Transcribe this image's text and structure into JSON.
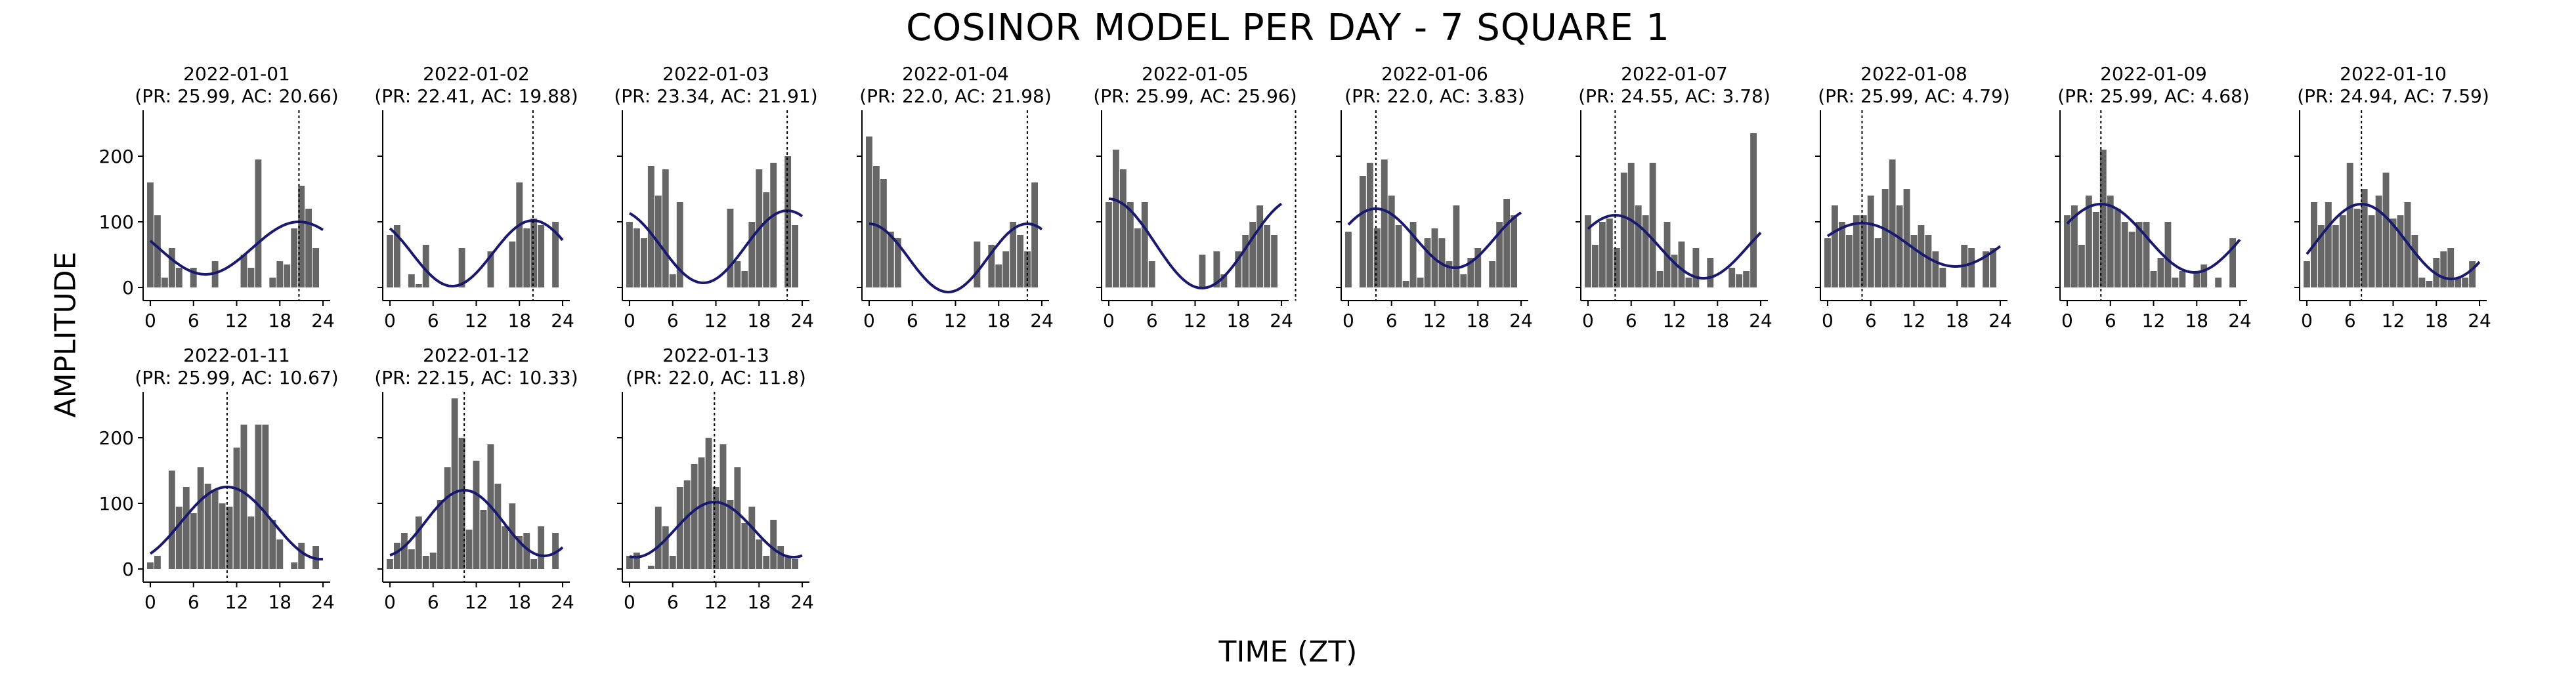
{
  "figure": {
    "title": "COSINOR MODEL PER DAY - 7 SQUARE 1",
    "ylabel": "AMPLITUDE",
    "xlabel": "TIME (ZT)",
    "bar_color": "#666666",
    "fit_color": "#191970"
  },
  "chart_data": [
    {
      "type": "bar",
      "title": "2022-01-01",
      "subtitle": "(PR: 25.99, AC: 20.66)",
      "x": [
        0,
        1,
        2,
        3,
        4,
        5,
        6,
        7,
        8,
        9,
        10,
        11,
        12,
        13,
        14,
        15,
        16,
        17,
        18,
        19,
        20,
        21,
        22,
        23
      ],
      "values": [
        160,
        110,
        15,
        60,
        30,
        0,
        30,
        0,
        0,
        40,
        0,
        0,
        0,
        50,
        30,
        195,
        0,
        15,
        40,
        35,
        90,
        155,
        120,
        60
      ],
      "xlim": [
        -1,
        25
      ],
      "ylim": [
        -20,
        270
      ],
      "xticks": [
        0,
        6,
        12,
        18,
        24
      ],
      "yticks": [
        0,
        100,
        200
      ],
      "fit": {
        "mesor": 60,
        "amplitude": 40,
        "acrophase": 20.66,
        "period": 25.99
      }
    },
    {
      "type": "bar",
      "title": "2022-01-02",
      "subtitle": "(PR: 22.41, AC: 19.88)",
      "x": [
        0,
        1,
        2,
        3,
        4,
        5,
        6,
        7,
        8,
        9,
        10,
        11,
        12,
        13,
        14,
        15,
        16,
        17,
        18,
        19,
        20,
        21,
        22,
        23
      ],
      "values": [
        80,
        95,
        0,
        20,
        5,
        65,
        0,
        0,
        0,
        0,
        60,
        0,
        0,
        0,
        55,
        0,
        0,
        70,
        160,
        90,
        105,
        95,
        0,
        100
      ],
      "xlim": [
        -1,
        25
      ],
      "ylim": [
        -20,
        270
      ],
      "xticks": [
        0,
        6,
        12,
        18,
        24
      ],
      "yticks": [
        0,
        100,
        200
      ],
      "fit": {
        "mesor": 52,
        "amplitude": 50,
        "acrophase": 19.88,
        "period": 22.41
      }
    },
    {
      "type": "bar",
      "title": "2022-01-03",
      "subtitle": "(PR: 23.34, AC: 21.91)",
      "x": [
        0,
        1,
        2,
        3,
        4,
        5,
        6,
        7,
        8,
        9,
        10,
        11,
        12,
        13,
        14,
        15,
        16,
        17,
        18,
        19,
        20,
        21,
        22,
        23
      ],
      "values": [
        100,
        90,
        75,
        185,
        140,
        180,
        20,
        130,
        0,
        0,
        0,
        0,
        0,
        0,
        120,
        40,
        25,
        100,
        180,
        145,
        190,
        0,
        200,
        95
      ],
      "xlim": [
        -1,
        25
      ],
      "ylim": [
        -20,
        270
      ],
      "xticks": [
        0,
        6,
        12,
        18,
        24
      ],
      "yticks": [
        0,
        100,
        200
      ],
      "fit": {
        "mesor": 62,
        "amplitude": 55,
        "acrophase": 21.91,
        "period": 23.34
      }
    },
    {
      "type": "bar",
      "title": "2022-01-04",
      "subtitle": "(PR: 22.0, AC: 21.98)",
      "x": [
        0,
        1,
        2,
        3,
        4,
        5,
        6,
        7,
        8,
        9,
        10,
        11,
        12,
        13,
        14,
        15,
        16,
        17,
        18,
        19,
        20,
        21,
        22,
        23
      ],
      "values": [
        230,
        185,
        165,
        85,
        75,
        0,
        0,
        0,
        0,
        0,
        0,
        0,
        0,
        0,
        0,
        70,
        0,
        65,
        35,
        55,
        100,
        80,
        55,
        160
      ],
      "xlim": [
        -1,
        25
      ],
      "ylim": [
        -20,
        270
      ],
      "xticks": [
        0,
        6,
        12,
        18,
        24
      ],
      "yticks": [
        0,
        100,
        200
      ],
      "fit": {
        "mesor": 45,
        "amplitude": 52,
        "acrophase": 21.98,
        "period": 22.0
      }
    },
    {
      "type": "bar",
      "title": "2022-01-05",
      "subtitle": "(PR: 25.99, AC: 25.96)",
      "x": [
        0,
        1,
        2,
        3,
        4,
        5,
        6,
        7,
        8,
        9,
        10,
        11,
        12,
        13,
        14,
        15,
        16,
        17,
        18,
        19,
        20,
        21,
        22,
        23
      ],
      "values": [
        130,
        210,
        180,
        130,
        90,
        130,
        40,
        0,
        0,
        0,
        0,
        0,
        0,
        50,
        0,
        55,
        20,
        0,
        55,
        80,
        100,
        125,
        95,
        80
      ],
      "xlim": [
        -1,
        25
      ],
      "ylim": [
        -20,
        270
      ],
      "xticks": [
        0,
        6,
        12,
        18,
        24
      ],
      "yticks": [
        0,
        100,
        200
      ],
      "fit": {
        "mesor": 67,
        "amplitude": 68,
        "acrophase": 25.96,
        "period": 25.99
      }
    },
    {
      "type": "bar",
      "title": "2022-01-06",
      "subtitle": "(PR: 22.0, AC: 3.83)",
      "x": [
        0,
        1,
        2,
        3,
        4,
        5,
        6,
        7,
        8,
        9,
        10,
        11,
        12,
        13,
        14,
        15,
        16,
        17,
        18,
        19,
        20,
        21,
        22,
        23
      ],
      "values": [
        85,
        0,
        170,
        190,
        90,
        195,
        140,
        95,
        10,
        100,
        15,
        75,
        90,
        75,
        40,
        125,
        20,
        45,
        60,
        0,
        40,
        100,
        135,
        110
      ],
      "xlim": [
        -1,
        25
      ],
      "ylim": [
        -20,
        270
      ],
      "xticks": [
        0,
        6,
        12,
        18,
        24
      ],
      "yticks": [
        0,
        100,
        200
      ],
      "fit": {
        "mesor": 75,
        "amplitude": 45,
        "acrophase": 3.83,
        "period": 22.0
      }
    },
    {
      "type": "bar",
      "title": "2022-01-07",
      "subtitle": "(PR: 24.55, AC: 3.78)",
      "x": [
        0,
        1,
        2,
        3,
        4,
        5,
        6,
        7,
        8,
        9,
        10,
        11,
        12,
        13,
        14,
        15,
        16,
        17,
        18,
        19,
        20,
        21,
        22,
        23
      ],
      "values": [
        110,
        65,
        100,
        105,
        60,
        175,
        190,
        125,
        110,
        190,
        25,
        100,
        50,
        70,
        15,
        60,
        0,
        45,
        0,
        0,
        30,
        20,
        25,
        235
      ],
      "xlim": [
        -1,
        25
      ],
      "ylim": [
        -20,
        270
      ],
      "xticks": [
        0,
        6,
        12,
        18,
        24
      ],
      "yticks": [
        0,
        100,
        200
      ],
      "fit": {
        "mesor": 62,
        "amplitude": 48,
        "acrophase": 3.78,
        "period": 24.55
      }
    },
    {
      "type": "bar",
      "title": "2022-01-08",
      "subtitle": "(PR: 25.99, AC: 4.79)",
      "x": [
        0,
        1,
        2,
        3,
        4,
        5,
        6,
        7,
        8,
        9,
        10,
        11,
        12,
        13,
        14,
        15,
        16,
        17,
        18,
        19,
        20,
        21,
        22,
        23
      ],
      "values": [
        75,
        125,
        100,
        80,
        110,
        110,
        140,
        75,
        150,
        195,
        125,
        150,
        80,
        95,
        80,
        55,
        30,
        0,
        0,
        65,
        60,
        0,
        55,
        60
      ],
      "xlim": [
        -1,
        25
      ],
      "ylim": [
        -20,
        270
      ],
      "xticks": [
        0,
        6,
        12,
        18,
        24
      ],
      "yticks": [
        0,
        100,
        200
      ],
      "fit": {
        "mesor": 65,
        "amplitude": 33,
        "acrophase": 4.79,
        "period": 25.99
      }
    },
    {
      "type": "bar",
      "title": "2022-01-09",
      "subtitle": "(PR: 25.99, AC: 4.68)",
      "x": [
        0,
        1,
        2,
        3,
        4,
        5,
        6,
        7,
        8,
        9,
        10,
        11,
        12,
        13,
        14,
        15,
        16,
        17,
        18,
        19,
        20,
        21,
        22,
        23
      ],
      "values": [
        110,
        125,
        65,
        140,
        115,
        210,
        140,
        120,
        100,
        85,
        100,
        100,
        25,
        45,
        100,
        15,
        25,
        0,
        25,
        35,
        0,
        15,
        0,
        75
      ],
      "xlim": [
        -1,
        25
      ],
      "ylim": [
        -20,
        270
      ],
      "xticks": [
        0,
        6,
        12,
        18,
        24
      ],
      "yticks": [
        0,
        100,
        200
      ],
      "fit": {
        "mesor": 75,
        "amplitude": 52,
        "acrophase": 4.68,
        "period": 25.99
      }
    },
    {
      "type": "bar",
      "title": "2022-01-10",
      "subtitle": "(PR: 24.94, AC: 7.59)",
      "x": [
        0,
        1,
        2,
        3,
        4,
        5,
        6,
        7,
        8,
        9,
        10,
        11,
        12,
        13,
        14,
        15,
        16,
        17,
        18,
        19,
        20,
        21,
        22,
        23
      ],
      "values": [
        40,
        130,
        95,
        130,
        95,
        110,
        190,
        120,
        150,
        110,
        140,
        175,
        105,
        110,
        130,
        80,
        15,
        10,
        45,
        55,
        60,
        15,
        15,
        40
      ],
      "xlim": [
        -1,
        25
      ],
      "ylim": [
        -20,
        270
      ],
      "xticks": [
        0,
        6,
        12,
        18,
        24
      ],
      "yticks": [
        0,
        100,
        200
      ],
      "fit": {
        "mesor": 70,
        "amplitude": 57,
        "acrophase": 7.59,
        "period": 24.94
      }
    },
    {
      "type": "bar",
      "title": "2022-01-11",
      "subtitle": "(PR: 25.99, AC: 10.67)",
      "x": [
        0,
        1,
        2,
        3,
        4,
        5,
        6,
        7,
        8,
        9,
        10,
        11,
        12,
        13,
        14,
        15,
        16,
        17,
        18,
        19,
        20,
        21,
        22,
        23
      ],
      "values": [
        10,
        20,
        0,
        150,
        95,
        125,
        85,
        155,
        130,
        120,
        100,
        95,
        185,
        220,
        80,
        220,
        220,
        75,
        45,
        0,
        10,
        40,
        0,
        35
      ],
      "xlim": [
        -1,
        25
      ],
      "ylim": [
        -20,
        270
      ],
      "xticks": [
        0,
        6,
        12,
        18,
        24
      ],
      "yticks": [
        0,
        100,
        200
      ],
      "fit": {
        "mesor": 70,
        "amplitude": 55,
        "acrophase": 10.67,
        "period": 25.99
      }
    },
    {
      "type": "bar",
      "title": "2022-01-12",
      "subtitle": "(PR: 22.15, AC: 10.33)",
      "x": [
        0,
        1,
        2,
        3,
        4,
        5,
        6,
        7,
        8,
        9,
        10,
        11,
        12,
        13,
        14,
        15,
        16,
        17,
        18,
        19,
        20,
        21,
        22,
        23
      ],
      "values": [
        15,
        40,
        55,
        30,
        80,
        20,
        25,
        105,
        155,
        260,
        200,
        60,
        165,
        90,
        190,
        130,
        65,
        100,
        50,
        55,
        15,
        65,
        0,
        55
      ],
      "xlim": [
        -1,
        25
      ],
      "ylim": [
        -20,
        270
      ],
      "xticks": [
        0,
        6,
        12,
        18,
        24
      ],
      "yticks": [
        0,
        100,
        200
      ],
      "fit": {
        "mesor": 70,
        "amplitude": 50,
        "acrophase": 10.33,
        "period": 22.15
      }
    },
    {
      "type": "bar",
      "title": "2022-01-13",
      "subtitle": "(PR: 22.0, AC: 11.8)",
      "x": [
        0,
        1,
        2,
        3,
        4,
        5,
        6,
        7,
        8,
        9,
        10,
        11,
        12,
        13,
        14,
        15,
        16,
        17,
        18,
        19,
        20,
        21,
        22,
        23
      ],
      "values": [
        20,
        25,
        0,
        5,
        95,
        65,
        20,
        125,
        135,
        160,
        170,
        200,
        125,
        190,
        105,
        155,
        70,
        95,
        45,
        20,
        75,
        35,
        20,
        15
      ],
      "xlim": [
        -1,
        25
      ],
      "ylim": [
        -20,
        270
      ],
      "xticks": [
        0,
        6,
        12,
        18,
        24
      ],
      "yticks": [
        0,
        100,
        200
      ],
      "fit": {
        "mesor": 60,
        "amplitude": 42,
        "acrophase": 11.8,
        "period": 22.0
      }
    }
  ]
}
